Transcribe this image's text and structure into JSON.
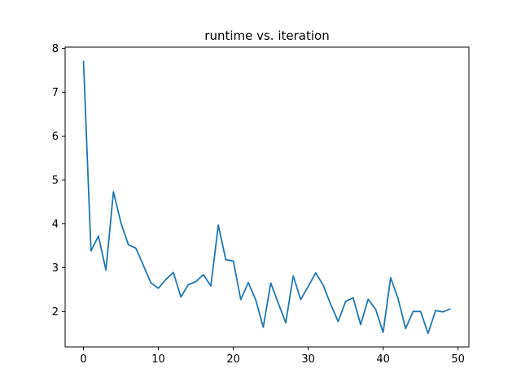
{
  "chart_data": {
    "type": "line",
    "title": "runtime vs. iteration",
    "xlabel": "",
    "ylabel": "",
    "xlim": [
      -2.45,
      51.45
    ],
    "ylim": [
      1.19,
      8.03
    ],
    "x_ticks": [
      0,
      10,
      20,
      30,
      40,
      50
    ],
    "y_ticks": [
      2,
      3,
      4,
      5,
      6,
      7,
      8
    ],
    "grid": false,
    "line_color": "#1f77b4",
    "series": [
      {
        "x": [
          0,
          1,
          2,
          3,
          4,
          5,
          6,
          7,
          8,
          9,
          10,
          11,
          12,
          13,
          14,
          15,
          16,
          17,
          18,
          19,
          20,
          21,
          22,
          23,
          24,
          25,
          26,
          27,
          28,
          29,
          30,
          31,
          32,
          33,
          34,
          35,
          36,
          37,
          38,
          39,
          40,
          41,
          42,
          43,
          44,
          45,
          46,
          47,
          48,
          49
        ],
        "values": [
          7.72,
          3.38,
          3.72,
          2.94,
          4.73,
          4.02,
          3.52,
          3.44,
          3.05,
          2.65,
          2.53,
          2.73,
          2.89,
          2.33,
          2.61,
          2.68,
          2.84,
          2.58,
          3.97,
          3.18,
          3.15,
          2.27,
          2.66,
          2.26,
          1.64,
          2.65,
          2.19,
          1.74,
          2.81,
          2.27,
          2.57,
          2.88,
          2.6,
          2.16,
          1.77,
          2.23,
          2.31,
          1.7,
          2.28,
          2.05,
          1.52,
          2.77,
          2.29,
          1.61,
          2.0,
          2.0,
          1.5,
          2.02,
          1.99,
          2.06
        ]
      }
    ]
  }
}
